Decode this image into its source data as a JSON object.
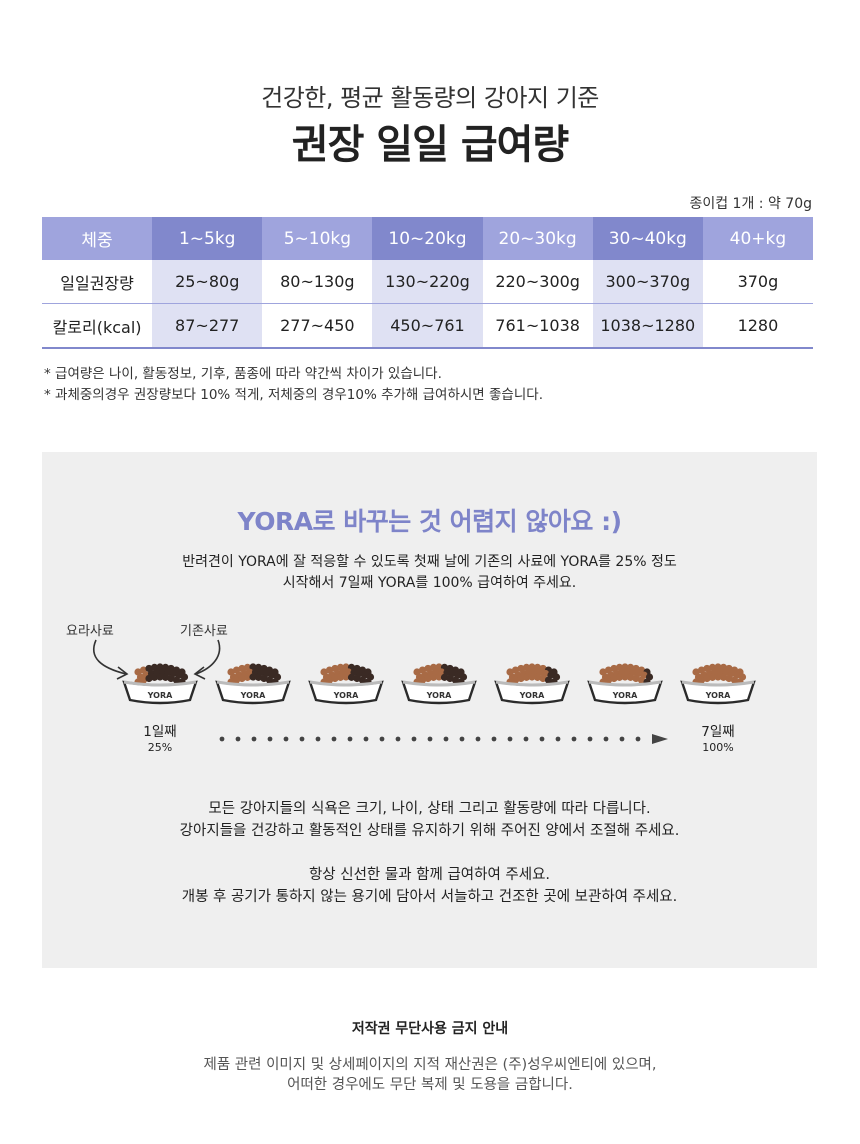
{
  "header": {
    "subtitle": "건강한, 평균 활동량의 강아지 기준",
    "title": "권장 일일 급여량",
    "cup_note": "종이컵 1개 : 약 70g"
  },
  "table": {
    "header": [
      "체중",
      "1~5kg",
      "5~10kg",
      "10~20kg",
      "20~30kg",
      "30~40kg",
      "40+kg"
    ],
    "rows": [
      [
        "일일권장량",
        "25~80g",
        "80~130g",
        "130~220g",
        "220~300g",
        "300~370g",
        "370g"
      ],
      [
        "칼로리(kcal)",
        "87~277",
        "277~450",
        "450~761",
        "761~1038",
        "1038~1280",
        "1280"
      ]
    ]
  },
  "notes": [
    "* 급여량은 나이, 활동정보, 기후, 품종에 따라 약간씩 차이가 있습니다.",
    "* 과체중의경우 권장량보다 10% 적게, 저체중의 경우10% 추가해 급여하시면 좋습니다."
  ],
  "transition": {
    "heading": "YORA로 바꾸는 것 어렵지 않아요 :)",
    "intro": [
      "반려견이 YORA에 잘 적응할 수 있도록 첫째 날에 기존의 사료에 YORA를 25% 정도",
      "시작해서 7일째 YORA를 100% 급여하여 주세요."
    ],
    "label_yora": "요라사료",
    "label_existing": "기존사료",
    "bowl_label": "YORA",
    "bowl_yora_fractions": [
      0.25,
      0.4,
      0.5,
      0.6,
      0.75,
      0.9,
      1.0
    ],
    "start_day": "1일째",
    "start_pct": "25%",
    "end_day": "7일째",
    "end_pct": "100%",
    "body": [
      "모든 강아지들의 식욕은 크기, 나이, 상태 그리고 활동량에 따라 다릅니다.",
      "강아지들을 건강하고 활동적인 상태를 유지하기 위해 주어진 양에서 조절해 주세요.",
      "",
      "항상 신선한 물과 함께 급여하여 주세요.",
      "개봉 후 공기가 통하지 않는 용기에 담아서 서늘하고 건조한 곳에 보관하여 주세요."
    ]
  },
  "footer": {
    "title": "저작권 무단사용 금지 안내",
    "body": [
      "제품 관련 이미지 및 상세페이지의 지적 재산권은 (주)성우씨엔티에 있으며,",
      "어떠한 경우에도 무단 복제 및 도용을 금합니다."
    ]
  },
  "colors": {
    "accent": "#7e84c9",
    "header_light": "#9fa4dd",
    "header_dark": "#8188cc",
    "shade": "#dfe1f3",
    "panel_bg": "#efefef",
    "kibble_yora": "#a86a45",
    "kibble_existing": "#3a2a24"
  }
}
